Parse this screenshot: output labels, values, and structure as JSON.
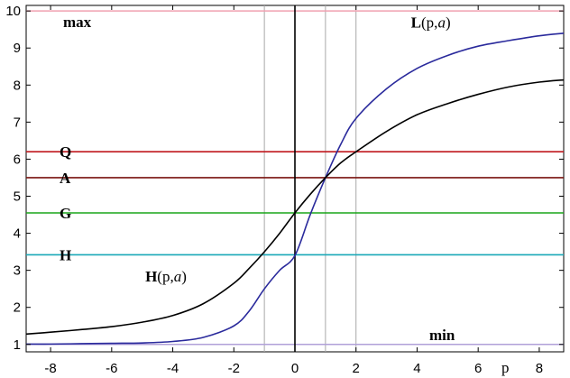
{
  "chart_data": {
    "type": "line",
    "xlabel": "p",
    "xlim": [
      -8.8,
      8.8
    ],
    "ylim": [
      0.8,
      10.15
    ],
    "x_ticks": [
      "-8",
      "-6",
      "-4",
      "-2",
      "0",
      "2",
      "4",
      "6",
      "8"
    ],
    "y_ticks": [
      "1",
      "2",
      "3",
      "4",
      "5",
      "6",
      "7",
      "8",
      "9",
      "10"
    ],
    "bound_labels": {
      "max": "max",
      "min": "min"
    },
    "bounds": {
      "max": 10,
      "min": 1
    },
    "horizontal_lines": [
      {
        "label": "Q",
        "y": 6.2,
        "color": "#c0181d"
      },
      {
        "label": "A",
        "y": 5.5,
        "color": "#7a1410"
      },
      {
        "label": "G",
        "y": 4.55,
        "color": "#1aa51a"
      },
      {
        "label": "H",
        "y": 3.42,
        "color": "#1aa8b8"
      }
    ],
    "vertical_gridlines": [
      -1,
      1,
      2
    ],
    "series": [
      {
        "name": "L(p,a)",
        "color": "#2a2a9c",
        "x": [
          -8.8,
          -8,
          -7,
          -6,
          -5,
          -4,
          -3,
          -2,
          -1.5,
          -1,
          -0.5,
          0,
          0.5,
          1,
          1.5,
          2,
          3,
          4,
          5,
          6,
          7,
          8,
          8.8
        ],
        "y": [
          1.01,
          1.01,
          1.02,
          1.03,
          1.04,
          1.08,
          1.19,
          1.5,
          1.9,
          2.5,
          3.0,
          3.4,
          4.5,
          5.5,
          6.4,
          7.1,
          7.9,
          8.45,
          8.8,
          9.05,
          9.2,
          9.33,
          9.4
        ]
      },
      {
        "name": "H(p,a)",
        "color": "#000000",
        "x": [
          -8.8,
          -8,
          -7,
          -6,
          -5,
          -4,
          -3,
          -2,
          -1.5,
          -1,
          -0.5,
          0,
          0.5,
          1,
          1.5,
          2,
          3,
          4,
          5,
          6,
          7,
          8,
          8.8
        ],
        "y": [
          1.28,
          1.33,
          1.4,
          1.48,
          1.6,
          1.78,
          2.1,
          2.65,
          3.05,
          3.5,
          4.0,
          4.55,
          5.05,
          5.5,
          5.9,
          6.2,
          6.75,
          7.2,
          7.5,
          7.75,
          7.95,
          8.08,
          8.14
        ]
      }
    ],
    "curve_label_positions": {
      "L(p,a)": [
        3.8,
        9.55
      ],
      "H(p,a)": [
        -4.9,
        2.7
      ]
    }
  }
}
